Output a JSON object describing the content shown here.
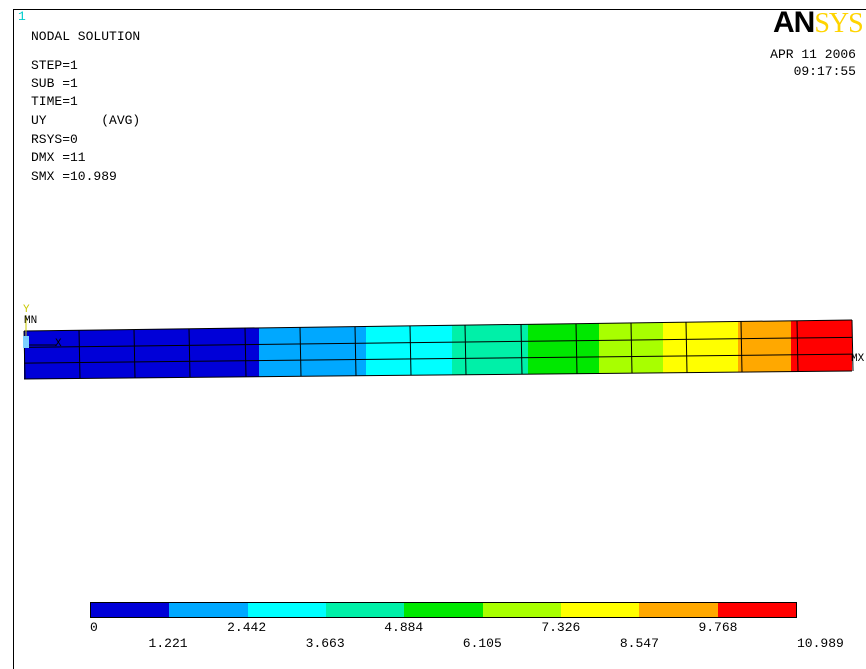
{
  "window_number": "1",
  "logo": {
    "left_part": "AN",
    "right_part": "SYS"
  },
  "header": {
    "title": "NODAL SOLUTION",
    "params": [
      "STEP=1",
      "SUB =1",
      "TIME=1",
      "UY       (AVG)",
      "RSYS=0",
      "DMX =11",
      "SMX =10.989"
    ]
  },
  "timestamp": {
    "date": "APR 11 2006",
    "time": "09:17:55"
  },
  "axis_labels": {
    "y": "Y",
    "x": "X",
    "min": "MN",
    "max": "MX"
  },
  "legend": {
    "colors": [
      "#0000d8",
      "#00a8ff",
      "#00ffff",
      "#00f0a8",
      "#00e800",
      "#a8ff00",
      "#ffff00",
      "#ffa800",
      "#ff0000"
    ],
    "top_labels": [
      "0",
      "2.442",
      "4.884",
      "7.326",
      "9.768"
    ],
    "bottom_labels": [
      "1.221",
      "3.663",
      "6.105",
      "8.547",
      "10.989"
    ]
  },
  "model": {
    "band_colors": [
      "#0000d8",
      "#00a8ff",
      "#00ffff",
      "#00f0a8",
      "#00e800",
      "#a8ff00",
      "#ffff00",
      "#ffa800",
      "#ff0000"
    ]
  }
}
